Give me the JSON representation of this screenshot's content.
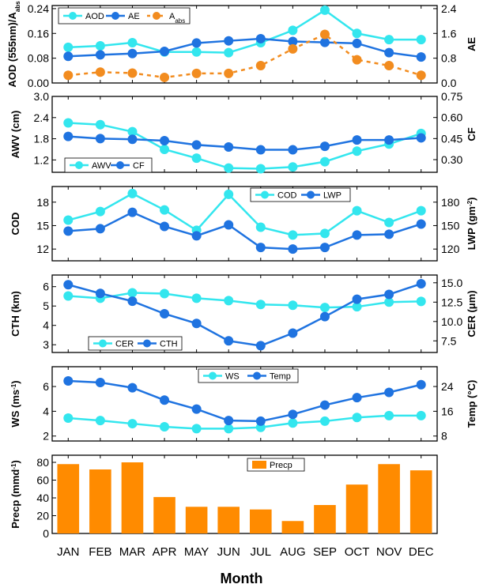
{
  "chart_data": [
    {
      "type": "line",
      "categories": [
        "JAN",
        "FEB",
        "MAR",
        "APR",
        "MAY",
        "JUN",
        "JUL",
        "AUG",
        "SEP",
        "OCT",
        "NOV",
        "DEC"
      ],
      "ylabel_left": "AOD (555nm)/A_abs",
      "ylabel_right": "AE",
      "ylim_left": [
        0,
        0.25
      ],
      "yticks_left": [
        "0.00",
        "0.08",
        "0.16",
        "0.24"
      ],
      "ylim_right": [
        0,
        2.5
      ],
      "yticks_right": [
        "0.0",
        "0.8",
        "1.6",
        "2.4"
      ],
      "legend_position": "top-left",
      "series": [
        {
          "name": "AOD",
          "axis": "left",
          "color": "#33e6ee",
          "style": "solid",
          "values": [
            0.115,
            0.12,
            0.13,
            0.1,
            0.1,
            0.098,
            0.13,
            0.17,
            0.235,
            0.16,
            0.14,
            0.14
          ]
        },
        {
          "name": "AE",
          "axis": "right",
          "color": "#1f73e0",
          "style": "solid",
          "values": [
            0.86,
            0.91,
            0.95,
            1.02,
            1.29,
            1.36,
            1.43,
            1.34,
            1.31,
            1.28,
            0.98,
            0.84
          ]
        },
        {
          "name": "A_abs",
          "axis": "left",
          "color": "#f28c1f",
          "style": "dashed",
          "values": [
            0.025,
            0.035,
            0.032,
            0.018,
            0.031,
            0.031,
            0.056,
            0.11,
            0.157,
            0.075,
            0.056,
            0.025
          ]
        }
      ]
    },
    {
      "type": "line",
      "categories": [
        "JAN",
        "FEB",
        "MAR",
        "APR",
        "MAY",
        "JUN",
        "JUL",
        "AUG",
        "SEP",
        "OCT",
        "NOV",
        "DEC"
      ],
      "ylabel_left": "AWV (cm)",
      "ylabel_right": "CF",
      "ylim_left": [
        0.85,
        3.0
      ],
      "yticks_left": [
        "1.2",
        "1.8",
        "2.4",
        "3.0"
      ],
      "ylim_right": [
        0.21,
        0.75
      ],
      "yticks_right": [
        "0.30",
        "0.45",
        "0.60",
        "0.75"
      ],
      "legend_position": "bottom-left",
      "series": [
        {
          "name": "AWV",
          "axis": "left",
          "color": "#33e6ee",
          "style": "solid",
          "values": [
            2.25,
            2.2,
            2.0,
            1.5,
            1.25,
            0.97,
            0.95,
            1.0,
            1.15,
            1.45,
            1.65,
            1.95
          ]
        },
        {
          "name": "CF",
          "axis": "right",
          "color": "#1f73e0",
          "style": "solid",
          "values": [
            0.465,
            0.45,
            0.445,
            0.435,
            0.405,
            0.39,
            0.37,
            0.37,
            0.395,
            0.44,
            0.44,
            0.455
          ]
        }
      ]
    },
    {
      "type": "line",
      "categories": [
        "JAN",
        "FEB",
        "MAR",
        "APR",
        "MAY",
        "JUN",
        "JUL",
        "AUG",
        "SEP",
        "OCT",
        "NOV",
        "DEC"
      ],
      "ylabel_left": "COD",
      "ylabel_right": "LWP (gm^-2)",
      "ylim_left": [
        10.5,
        20.0
      ],
      "yticks_left": [
        "12",
        "15",
        "18"
      ],
      "ylim_right": [
        105,
        200
      ],
      "yticks_right": [
        "120",
        "150",
        "180"
      ],
      "legend_position": "top-center",
      "series": [
        {
          "name": "COD",
          "axis": "left",
          "color": "#33e6ee",
          "style": "solid",
          "values": [
            15.7,
            16.8,
            19.1,
            17.0,
            14.4,
            19.0,
            14.8,
            13.8,
            14.0,
            16.9,
            15.4,
            16.9
          ]
        },
        {
          "name": "LWP",
          "axis": "right",
          "color": "#1f73e0",
          "style": "solid",
          "values": [
            143,
            146,
            167,
            149,
            137,
            151,
            122,
            120,
            122,
            138,
            139,
            152
          ]
        }
      ]
    },
    {
      "type": "line",
      "categories": [
        "JAN",
        "FEB",
        "MAR",
        "APR",
        "MAY",
        "JUN",
        "JUL",
        "AUG",
        "SEP",
        "OCT",
        "NOV",
        "DEC"
      ],
      "ylabel_left": "CTH (km)",
      "ylabel_right": "CER (μm)",
      "ylim_left": [
        2.6,
        6.6
      ],
      "yticks_left": [
        "3",
        "4",
        "5",
        "6"
      ],
      "ylim_right": [
        6.0,
        16.0
      ],
      "yticks_right": [
        "7.5",
        "10.0",
        "12.5",
        "15.0"
      ],
      "legend_position": "bottom-left",
      "series": [
        {
          "name": "CER",
          "axis": "right",
          "color": "#33e6ee",
          "style": "solid",
          "values": [
            13.3,
            13.0,
            13.7,
            13.6,
            13.0,
            12.7,
            12.2,
            12.1,
            11.8,
            11.9,
            12.5,
            12.6
          ]
        },
        {
          "name": "CTH",
          "axis": "left",
          "color": "#1f73e0",
          "style": "solid",
          "values": [
            6.1,
            5.65,
            5.25,
            4.6,
            4.1,
            3.2,
            2.95,
            3.6,
            4.45,
            5.35,
            5.6,
            6.15
          ]
        }
      ]
    },
    {
      "type": "line",
      "categories": [
        "JAN",
        "FEB",
        "MAR",
        "APR",
        "MAY",
        "JUN",
        "JUL",
        "AUG",
        "SEP",
        "OCT",
        "NOV",
        "DEC"
      ],
      "ylabel_left": "WS (ms^-1)",
      "ylabel_right": "Temp (°C)",
      "ylim_left": [
        1.6,
        7.6
      ],
      "yticks_left": [
        "2",
        "4",
        "6"
      ],
      "ylim_right": [
        6.4,
        30.4
      ],
      "yticks_right": [
        "8",
        "16",
        "24"
      ],
      "legend_position": "top-center",
      "series": [
        {
          "name": "WS",
          "axis": "left",
          "color": "#33e6ee",
          "style": "solid",
          "values": [
            3.45,
            3.25,
            3.0,
            2.75,
            2.6,
            2.6,
            2.7,
            3.05,
            3.2,
            3.5,
            3.65,
            3.65
          ]
        },
        {
          "name": "Temp",
          "axis": "right",
          "color": "#1f73e0",
          "style": "solid",
          "values": [
            25.8,
            25.3,
            23.6,
            19.6,
            16.7,
            13.0,
            12.8,
            15.0,
            18.0,
            20.4,
            22.1,
            24.6
          ]
        }
      ]
    },
    {
      "type": "bar",
      "categories": [
        "JAN",
        "FEB",
        "MAR",
        "APR",
        "MAY",
        "JUN",
        "JUL",
        "AUG",
        "SEP",
        "OCT",
        "NOV",
        "DEC"
      ],
      "ylabel_left": "Precp (mmd^-1)",
      "ylim_left": [
        0,
        88
      ],
      "yticks_left": [
        "0",
        "20",
        "40",
        "60",
        "80"
      ],
      "legend_position": "top-center",
      "series": [
        {
          "name": "Precp",
          "color": "#ff8b00",
          "values": [
            78,
            72,
            80,
            41,
            30,
            30,
            27,
            14,
            32,
            55,
            78,
            71
          ]
        }
      ]
    }
  ],
  "x_axis": {
    "title": "Month",
    "labels": [
      "JAN",
      "FEB",
      "MAR",
      "APR",
      "MAY",
      "JUN",
      "JUL",
      "AUG",
      "SEP",
      "OCT",
      "NOV",
      "DEC"
    ]
  }
}
